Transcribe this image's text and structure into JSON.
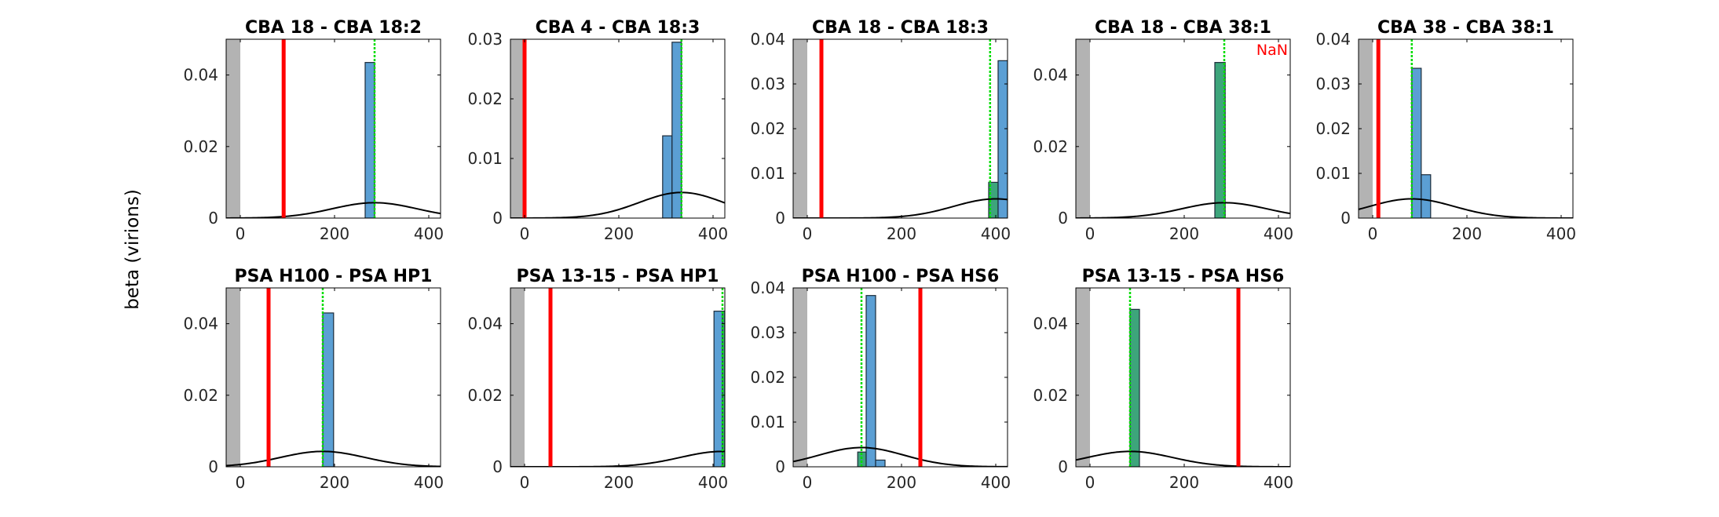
{
  "figure": {
    "ylabel": "beta (virions)"
  },
  "colors": {
    "bar_fill": "#5b9fd4",
    "bar_overlap_fill": "#3da57b",
    "bar_edge": "#1c2b3a",
    "red_line": "#ff0000",
    "green_line": "#00dd00",
    "gray_region": "#b3b3b3",
    "curve": "#000000",
    "nan_text": "#ff0000"
  },
  "chart_data": [
    {
      "type": "bar",
      "title": "CBA 18 - CBA 18:2",
      "xticks": [
        0,
        200,
        400
      ],
      "xtick_labels": [
        "0",
        "200",
        "400"
      ],
      "yticks": [
        0,
        0.02,
        0.04
      ],
      "ytick_labels": [
        "0",
        "0.02",
        "0.04"
      ],
      "xlim": [
        -30,
        425
      ],
      "ylim": [
        0,
        0.05
      ],
      "gray_region": [
        -30,
        0
      ],
      "red_line": 92,
      "green_line": 285,
      "bars": [
        {
          "x0": 265,
          "x1": 285,
          "y": 0.0435
        }
      ],
      "curve": {
        "mu": 285,
        "sigma": 90,
        "peak": 0.0043
      }
    },
    {
      "type": "bar",
      "title": "CBA 4 - CBA 18:3",
      "xticks": [
        0,
        200,
        400
      ],
      "xtick_labels": [
        "0",
        "200",
        "400"
      ],
      "yticks": [
        0,
        0.01,
        0.02,
        0.03
      ],
      "ytick_labels": [
        "0",
        "0.01",
        "0.02",
        "0.03"
      ],
      "xlim": [
        -30,
        425
      ],
      "ylim": [
        0,
        0.03
      ],
      "gray_region": [
        -30,
        0
      ],
      "red_line": 0,
      "green_line": 333,
      "bars": [
        {
          "x0": 293,
          "x1": 313,
          "y": 0.0138
        },
        {
          "x0": 313,
          "x1": 333,
          "y": 0.0295
        }
      ],
      "curve": {
        "mu": 333,
        "sigma": 90,
        "peak": 0.0043
      }
    },
    {
      "type": "bar",
      "title": "CBA 18 - CBA 18:3",
      "xticks": [
        0,
        200,
        400
      ],
      "xtick_labels": [
        "0",
        "200",
        "400"
      ],
      "yticks": [
        0,
        0.01,
        0.02,
        0.03,
        0.04
      ],
      "ytick_labels": [
        "0",
        "0.01",
        "0.02",
        "0.03",
        "0.04"
      ],
      "xlim": [
        -30,
        425
      ],
      "ylim": [
        0,
        0.04
      ],
      "gray_region": [
        -30,
        0
      ],
      "red_line": 30,
      "green_line": 388,
      "bars": [
        {
          "x0": 385,
          "x1": 405,
          "y": 0.008,
          "overlap": true
        },
        {
          "x0": 405,
          "x1": 425,
          "y": 0.0352
        }
      ],
      "curve": {
        "mu": 400,
        "sigma": 90,
        "peak": 0.0043
      }
    },
    {
      "type": "bar",
      "title": "CBA 18 - CBA 38:1",
      "annotation": "NaN",
      "xticks": [
        0,
        200,
        400
      ],
      "xtick_labels": [
        "0",
        "200",
        "400"
      ],
      "yticks": [
        0,
        0.02,
        0.04
      ],
      "ytick_labels": [
        "0",
        "0.02",
        "0.04"
      ],
      "xlim": [
        -30,
        425
      ],
      "ylim": [
        0,
        0.05
      ],
      "gray_region": [
        -30,
        0
      ],
      "red_line": null,
      "green_line": 285,
      "bars": [
        {
          "x0": 265,
          "x1": 287,
          "y": 0.0435,
          "overlap": true
        }
      ],
      "curve": {
        "mu": 285,
        "sigma": 90,
        "peak": 0.0043
      }
    },
    {
      "type": "bar",
      "title": "CBA 38 - CBA 38:1",
      "xticks": [
        0,
        200,
        400
      ],
      "xtick_labels": [
        "0",
        "200",
        "400"
      ],
      "yticks": [
        0,
        0.01,
        0.02,
        0.03,
        0.04
      ],
      "ytick_labels": [
        "0",
        "0.01",
        "0.02",
        "0.03",
        "0.04"
      ],
      "xlim": [
        -30,
        425
      ],
      "ylim": [
        0,
        0.04
      ],
      "gray_region": [
        -30,
        0
      ],
      "red_line": 12,
      "green_line": 83,
      "bars": [
        {
          "x0": 83,
          "x1": 103,
          "y": 0.0335
        },
        {
          "x0": 103,
          "x1": 123,
          "y": 0.0097
        }
      ],
      "curve": {
        "mu": 83,
        "sigma": 90,
        "peak": 0.0043
      }
    },
    {
      "type": "bar",
      "title": "PSA H100 - PSA HP1",
      "xticks": [
        0,
        200,
        400
      ],
      "xtick_labels": [
        "0",
        "200",
        "400"
      ],
      "yticks": [
        0,
        0.02,
        0.04
      ],
      "ytick_labels": [
        "0",
        "0.02",
        "0.04"
      ],
      "xlim": [
        -30,
        425
      ],
      "ylim": [
        0,
        0.05
      ],
      "gray_region": [
        -30,
        0
      ],
      "red_line": 60,
      "green_line": 175,
      "bars": [
        {
          "x0": 175,
          "x1": 198,
          "y": 0.043
        }
      ],
      "curve": {
        "mu": 175,
        "sigma": 90,
        "peak": 0.0043
      }
    },
    {
      "type": "bar",
      "title": "PSA 13-15 - PSA HP1",
      "xticks": [
        0,
        200,
        400
      ],
      "xtick_labels": [
        "0",
        "200",
        "400"
      ],
      "yticks": [
        0,
        0.02,
        0.04
      ],
      "ytick_labels": [
        "0",
        "0.02",
        "0.04"
      ],
      "xlim": [
        -30,
        425
      ],
      "ylim": [
        0,
        0.05
      ],
      "gray_region": [
        -30,
        0
      ],
      "red_line": 55,
      "green_line": 420,
      "bars": [
        {
          "x0": 402,
          "x1": 420,
          "y": 0.0435
        },
        {
          "x0": 420,
          "x1": 425,
          "y": 0.0435,
          "overlap": true
        }
      ],
      "curve": {
        "mu": 420,
        "sigma": 90,
        "peak": 0.0043
      }
    },
    {
      "type": "bar",
      "title": "PSA H100 - PSA HS6",
      "xticks": [
        0,
        200,
        400
      ],
      "xtick_labels": [
        "0",
        "200",
        "400"
      ],
      "yticks": [
        0,
        0.01,
        0.02,
        0.03,
        0.04
      ],
      "ytick_labels": [
        "0",
        "0.01",
        "0.02",
        "0.03",
        "0.04"
      ],
      "xlim": [
        -30,
        425
      ],
      "ylim": [
        0,
        0.04
      ],
      "gray_region": [
        -30,
        0
      ],
      "red_line": 240,
      "green_line": 115,
      "bars": [
        {
          "x0": 107,
          "x1": 125,
          "y": 0.0033,
          "overlap": true
        },
        {
          "x0": 125,
          "x1": 145,
          "y": 0.0383
        },
        {
          "x0": 145,
          "x1": 165,
          "y": 0.0015
        }
      ],
      "curve": {
        "mu": 115,
        "sigma": 90,
        "peak": 0.0043
      }
    },
    {
      "type": "bar",
      "title": "PSA 13-15 - PSA HS6",
      "xticks": [
        0,
        200,
        400
      ],
      "xtick_labels": [
        "0",
        "200",
        "400"
      ],
      "yticks": [
        0,
        0.02,
        0.04
      ],
      "ytick_labels": [
        "0",
        "0.02",
        "0.04"
      ],
      "xlim": [
        -30,
        425
      ],
      "ylim": [
        0,
        0.05
      ],
      "gray_region": [
        -30,
        0
      ],
      "red_line": 315,
      "green_line": 85,
      "bars": [
        {
          "x0": 85,
          "x1": 105,
          "y": 0.044,
          "overlap": true
        }
      ],
      "curve": {
        "mu": 85,
        "sigma": 90,
        "peak": 0.0043
      }
    }
  ]
}
